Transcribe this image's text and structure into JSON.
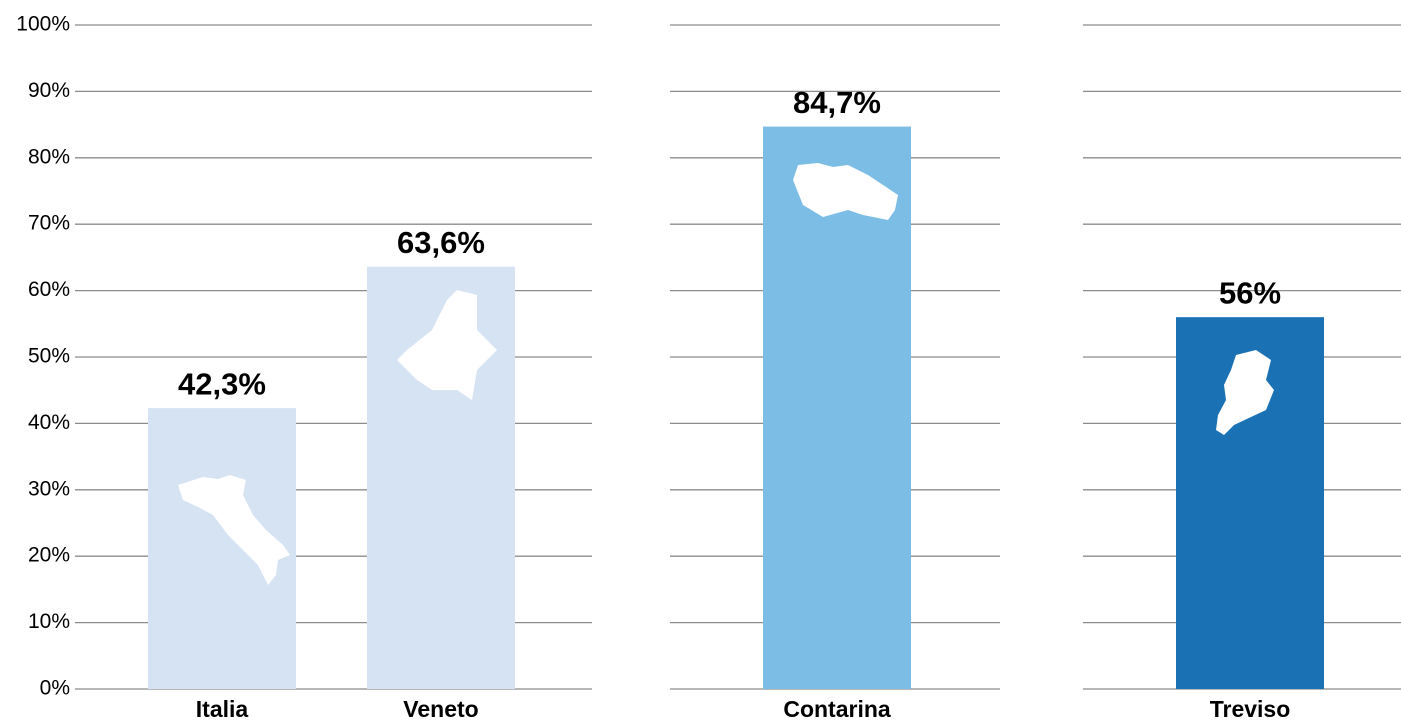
{
  "chart_data": {
    "type": "bar",
    "categories": [
      "Italia",
      "Veneto",
      "Contarina",
      "Treviso"
    ],
    "values": [
      42.3,
      63.6,
      84.7,
      56
    ],
    "value_labels": [
      "42,3%",
      "63,6%",
      "84,7%",
      "56%"
    ],
    "colors": [
      "#d6e3f2",
      "#d6e3f2",
      "#7bbde4",
      "#1a72b5"
    ],
    "ylim": [
      0,
      100
    ],
    "yticks": [
      {
        "value": 0,
        "label": "0%"
      },
      {
        "value": 10,
        "label": "10%"
      },
      {
        "value": 20,
        "label": "20%"
      },
      {
        "value": 30,
        "label": "30%"
      },
      {
        "value": 40,
        "label": "40%"
      },
      {
        "value": 50,
        "label": "50%"
      },
      {
        "value": 60,
        "label": "60%"
      },
      {
        "value": 70,
        "label": "70%"
      },
      {
        "value": 80,
        "label": "80%"
      },
      {
        "value": 90,
        "label": "90%"
      },
      {
        "value": 100,
        "label": "100%"
      }
    ],
    "grid": true
  }
}
